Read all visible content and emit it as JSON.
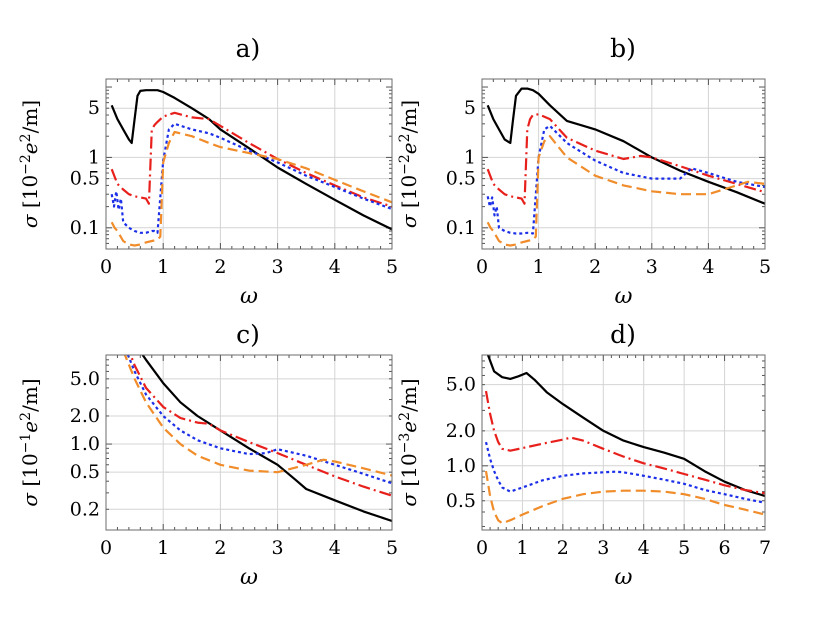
{
  "colors": {
    "black": "#000000",
    "red": "#e8201c",
    "blue": "#1c2fe8",
    "orange": "#f08c2a",
    "grid": "#d4d4d4",
    "frame": "#6b6b6b"
  },
  "series_styles": [
    {
      "name": "solid",
      "color": "#000000",
      "dash": "none"
    },
    {
      "name": "dash-dot",
      "color": "#e8201c",
      "dash": "dashdot"
    },
    {
      "name": "dotted",
      "color": "#1c2fe8",
      "dash": "dot"
    },
    {
      "name": "dashed",
      "color": "#f08c2a",
      "dash": "dash"
    }
  ],
  "chart_data": [
    {
      "panel": "a",
      "type": "line",
      "title": "a)",
      "xlabel": "ω",
      "ylabel": "σ [10⁻²e²/m]",
      "ylabel_parts": {
        "sym": "σ [10",
        "exp": "−2",
        "unit": "e",
        "unit_exp": "2",
        "tail": "/m]"
      },
      "xlim": [
        0,
        5
      ],
      "ylim": [
        0.05,
        13
      ],
      "yscale": "log",
      "xticks": [
        0,
        1,
        2,
        3,
        4,
        5
      ],
      "yticks": [
        {
          "v": 0.1,
          "label": "0.1"
        },
        {
          "v": 0.5,
          "label": "0.5"
        },
        {
          "v": 1,
          "label": "1"
        },
        {
          "v": 5,
          "label": "5"
        }
      ],
      "series": [
        {
          "name": "solid",
          "x": [
            0.1,
            0.2,
            0.3,
            0.4,
            0.45,
            0.5,
            0.55,
            0.6,
            0.7,
            0.8,
            0.9,
            1.0,
            1.2,
            1.5,
            1.8,
            2.0,
            2.5,
            3.0,
            3.5,
            4.0,
            4.5,
            5.0
          ],
          "y": [
            5.5,
            3.5,
            2.5,
            1.8,
            1.6,
            3.5,
            7.5,
            8.8,
            9.0,
            9.0,
            9.0,
            8.5,
            7.0,
            5.0,
            3.5,
            2.5,
            1.35,
            0.72,
            0.42,
            0.25,
            0.15,
            0.095
          ]
        },
        {
          "name": "dash-dot",
          "x": [
            0.1,
            0.2,
            0.3,
            0.4,
            0.5,
            0.6,
            0.7,
            0.75,
            0.8,
            0.85,
            0.9,
            1.0,
            1.2,
            1.5,
            1.8,
            2.0,
            2.5,
            3.0,
            3.5,
            4.0,
            4.5,
            5.0
          ],
          "y": [
            0.68,
            0.42,
            0.35,
            0.3,
            0.28,
            0.27,
            0.26,
            0.22,
            2.5,
            2.9,
            3.2,
            3.8,
            4.3,
            3.7,
            3.5,
            2.8,
            1.6,
            0.95,
            0.6,
            0.4,
            0.27,
            0.2
          ]
        },
        {
          "name": "dotted",
          "x": [
            0.1,
            0.14,
            0.18,
            0.22,
            0.26,
            0.3,
            0.4,
            0.5,
            0.6,
            0.7,
            0.8,
            0.85,
            0.9,
            1.0,
            1.1,
            1.2,
            1.5,
            1.8,
            2.0,
            2.5,
            3.0,
            3.5,
            4.0,
            4.5,
            5.0
          ],
          "y": [
            0.3,
            0.2,
            0.33,
            0.18,
            0.26,
            0.12,
            0.1,
            0.09,
            0.085,
            0.085,
            0.09,
            0.09,
            0.085,
            0.9,
            2.5,
            3.0,
            2.5,
            2.2,
            1.9,
            1.25,
            0.85,
            0.55,
            0.38,
            0.26,
            0.185
          ]
        },
        {
          "name": "dashed",
          "x": [
            0.1,
            0.15,
            0.2,
            0.3,
            0.4,
            0.5,
            0.6,
            0.7,
            0.8,
            0.9,
            0.95,
            1.0,
            1.1,
            1.2,
            1.5,
            1.8,
            2.0,
            2.5,
            3.0,
            3.5,
            4.0,
            4.5,
            5.0
          ],
          "y": [
            0.12,
            0.1,
            0.09,
            0.065,
            0.058,
            0.056,
            0.058,
            0.062,
            0.065,
            0.068,
            0.075,
            0.85,
            1.6,
            2.3,
            2.0,
            1.6,
            1.4,
            1.15,
            0.95,
            0.7,
            0.48,
            0.33,
            0.23
          ]
        }
      ]
    },
    {
      "panel": "b",
      "type": "line",
      "title": "b)",
      "xlabel": "ω",
      "ylabel": "σ [10⁻²e²/m]",
      "ylabel_parts": {
        "sym": "σ [10",
        "exp": "−2",
        "unit": "e",
        "unit_exp": "2",
        "tail": "/m]"
      },
      "xlim": [
        0,
        5
      ],
      "ylim": [
        0.05,
        13
      ],
      "yscale": "log",
      "xticks": [
        0,
        1,
        2,
        3,
        4,
        5
      ],
      "yticks": [
        {
          "v": 0.1,
          "label": "0.1"
        },
        {
          "v": 0.5,
          "label": "0.5"
        },
        {
          "v": 1,
          "label": "1"
        },
        {
          "v": 5,
          "label": "5"
        }
      ],
      "series": [
        {
          "name": "solid",
          "x": [
            0.1,
            0.2,
            0.3,
            0.4,
            0.5,
            0.55,
            0.6,
            0.7,
            0.8,
            0.9,
            1.0,
            1.2,
            1.5,
            2.0,
            2.5,
            3.0,
            3.5,
            4.0,
            4.5,
            5.0
          ],
          "y": [
            5.5,
            3.5,
            2.5,
            1.8,
            1.6,
            3.5,
            7.5,
            9.5,
            9.5,
            9.0,
            8.0,
            5.5,
            3.3,
            2.5,
            1.7,
            1.0,
            0.65,
            0.45,
            0.32,
            0.22
          ]
        },
        {
          "name": "dash-dot",
          "x": [
            0.1,
            0.2,
            0.3,
            0.4,
            0.5,
            0.6,
            0.7,
            0.75,
            0.8,
            0.85,
            0.9,
            1.0,
            1.2,
            1.5,
            2.0,
            2.5,
            2.8,
            3.0,
            3.5,
            4.0,
            4.5,
            5.0
          ],
          "y": [
            0.68,
            0.42,
            0.35,
            0.3,
            0.28,
            0.27,
            0.26,
            0.22,
            2.5,
            3.5,
            4.0,
            4.1,
            3.5,
            1.9,
            1.25,
            0.95,
            1.05,
            1.0,
            0.75,
            0.55,
            0.42,
            0.32
          ]
        },
        {
          "name": "dotted",
          "x": [
            0.1,
            0.14,
            0.18,
            0.22,
            0.26,
            0.3,
            0.4,
            0.5,
            0.6,
            0.7,
            0.8,
            0.85,
            0.9,
            1.0,
            1.1,
            1.2,
            1.5,
            2.0,
            2.5,
            3.0,
            3.5,
            3.7,
            4.0,
            4.5,
            5.0
          ],
          "y": [
            0.28,
            0.2,
            0.27,
            0.15,
            0.2,
            0.1,
            0.09,
            0.085,
            0.083,
            0.083,
            0.085,
            0.085,
            0.083,
            1.0,
            2.5,
            2.8,
            1.6,
            0.9,
            0.6,
            0.5,
            0.5,
            0.7,
            0.6,
            0.45,
            0.38
          ]
        },
        {
          "name": "dashed",
          "x": [
            0.1,
            0.15,
            0.2,
            0.3,
            0.4,
            0.5,
            0.6,
            0.7,
            0.8,
            0.9,
            0.95,
            1.0,
            1.1,
            1.2,
            1.5,
            2.0,
            2.5,
            3.0,
            3.5,
            4.0,
            4.5,
            4.7,
            5.0
          ],
          "y": [
            0.12,
            0.1,
            0.09,
            0.065,
            0.058,
            0.056,
            0.058,
            0.062,
            0.065,
            0.068,
            0.075,
            1.0,
            1.7,
            2.0,
            1.0,
            0.55,
            0.4,
            0.33,
            0.3,
            0.3,
            0.4,
            0.45,
            0.42
          ]
        }
      ]
    },
    {
      "panel": "c",
      "type": "line",
      "title": "c)",
      "xlabel": "ω",
      "ylabel": "σ [10⁻¹e²/m]",
      "ylabel_parts": {
        "sym": "σ [10",
        "exp": "−1",
        "unit": "e",
        "unit_exp": "2",
        "tail": "/m]"
      },
      "xlim": [
        0,
        5
      ],
      "ylim": [
        0.12,
        9
      ],
      "yscale": "log",
      "xticks": [
        0,
        1,
        2,
        3,
        4,
        5
      ],
      "yticks": [
        {
          "v": 0.2,
          "label": "0.2"
        },
        {
          "v": 0.5,
          "label": "0.5"
        },
        {
          "v": 1.0,
          "label": "1.0"
        },
        {
          "v": 2.0,
          "label": "2.0"
        },
        {
          "v": 5.0,
          "label": "5.0"
        }
      ],
      "series": [
        {
          "name": "solid",
          "x": [
            0.5,
            0.7,
            1.0,
            1.3,
            1.6,
            2.0,
            2.5,
            3.0,
            3.3,
            3.5,
            4.0,
            4.5,
            5.0
          ],
          "y": [
            12,
            8,
            4.5,
            2.8,
            2.0,
            1.4,
            0.9,
            0.6,
            0.42,
            0.33,
            0.25,
            0.19,
            0.15
          ]
        },
        {
          "name": "dash-dot",
          "x": [
            0.35,
            0.5,
            0.7,
            1.0,
            1.3,
            1.6,
            1.8,
            2.0,
            2.5,
            3.0,
            3.5,
            4.0,
            4.5,
            5.0
          ],
          "y": [
            12,
            7,
            4,
            2.5,
            1.9,
            1.7,
            1.65,
            1.4,
            1.05,
            0.8,
            0.6,
            0.45,
            0.35,
            0.28
          ]
        },
        {
          "name": "dotted",
          "x": [
            0.3,
            0.5,
            0.7,
            1.0,
            1.3,
            1.6,
            2.0,
            2.5,
            2.8,
            3.0,
            3.5,
            4.0,
            4.5,
            5.0
          ],
          "y": [
            12,
            6,
            3.4,
            2.0,
            1.4,
            1.1,
            0.9,
            0.78,
            0.8,
            0.88,
            0.75,
            0.6,
            0.48,
            0.38
          ]
        },
        {
          "name": "dashed",
          "x": [
            0.3,
            0.5,
            0.7,
            1.0,
            1.3,
            1.6,
            2.0,
            2.5,
            3.0,
            3.5,
            3.8,
            4.0,
            4.5,
            5.0
          ],
          "y": [
            10,
            5,
            2.8,
            1.5,
            1.0,
            0.75,
            0.6,
            0.52,
            0.5,
            0.6,
            0.68,
            0.65,
            0.55,
            0.46
          ]
        }
      ]
    },
    {
      "panel": "d",
      "type": "line",
      "title": "d)",
      "xlabel": "ω",
      "ylabel": "σ [10⁻³e²/m]",
      "ylabel_parts": {
        "sym": "σ [10",
        "exp": "−3",
        "unit": "e",
        "unit_exp": "2",
        "tail": "/m]"
      },
      "xlim": [
        0,
        7
      ],
      "ylim": [
        0.28,
        9
      ],
      "yscale": "log",
      "xticks": [
        0,
        1,
        2,
        3,
        4,
        5,
        6,
        7
      ],
      "yticks": [
        {
          "v": 0.5,
          "label": "0.5"
        },
        {
          "v": 1.0,
          "label": "1.0"
        },
        {
          "v": 2.0,
          "label": "2.0"
        },
        {
          "v": 5.0,
          "label": "5.0"
        }
      ],
      "series": [
        {
          "name": "solid",
          "x": [
            0.1,
            0.3,
            0.5,
            0.7,
            0.9,
            1.1,
            1.3,
            1.6,
            2.0,
            2.5,
            3.0,
            3.5,
            4.0,
            4.5,
            5.0,
            5.5,
            6.0,
            6.5,
            7.0
          ],
          "y": [
            10,
            6.5,
            5.8,
            5.6,
            5.9,
            6.3,
            5.5,
            4.3,
            3.4,
            2.6,
            2.0,
            1.65,
            1.45,
            1.3,
            1.15,
            0.9,
            0.73,
            0.62,
            0.55
          ]
        },
        {
          "name": "dash-dot",
          "x": [
            0.1,
            0.2,
            0.3,
            0.4,
            0.5,
            0.7,
            1.0,
            1.5,
            2.0,
            2.2,
            2.5,
            3.0,
            3.5,
            4.0,
            4.5,
            5.0,
            5.5,
            6.0,
            6.5,
            7.0
          ],
          "y": [
            4.4,
            2.8,
            2.0,
            1.6,
            1.4,
            1.35,
            1.42,
            1.55,
            1.68,
            1.75,
            1.65,
            1.4,
            1.2,
            1.05,
            0.95,
            0.85,
            0.76,
            0.68,
            0.62,
            0.58
          ]
        },
        {
          "name": "dotted",
          "x": [
            0.1,
            0.2,
            0.3,
            0.4,
            0.5,
            0.7,
            1.0,
            1.5,
            2.0,
            2.5,
            3.0,
            3.3,
            3.5,
            4.0,
            4.5,
            5.0,
            5.5,
            6.0,
            6.5,
            7.0
          ],
          "y": [
            1.6,
            1.15,
            0.9,
            0.75,
            0.65,
            0.6,
            0.65,
            0.75,
            0.82,
            0.86,
            0.88,
            0.89,
            0.88,
            0.82,
            0.76,
            0.7,
            0.62,
            0.57,
            0.52,
            0.48
          ]
        },
        {
          "name": "dashed",
          "x": [
            0.1,
            0.2,
            0.3,
            0.4,
            0.5,
            0.7,
            1.0,
            1.5,
            2.0,
            2.5,
            3.0,
            3.5,
            4.0,
            4.5,
            5.0,
            5.5,
            6.0,
            6.5,
            7.0
          ],
          "y": [
            0.9,
            0.55,
            0.4,
            0.34,
            0.32,
            0.34,
            0.38,
            0.45,
            0.52,
            0.57,
            0.6,
            0.61,
            0.61,
            0.6,
            0.57,
            0.52,
            0.46,
            0.42,
            0.38
          ]
        }
      ]
    }
  ]
}
